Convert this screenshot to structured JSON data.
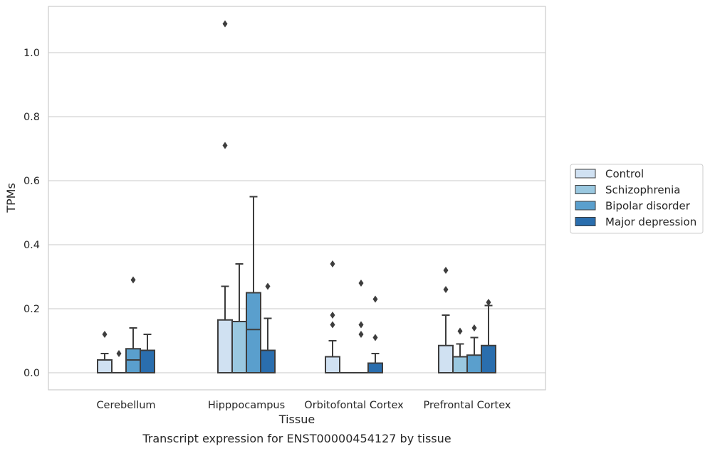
{
  "chart_data": {
    "type": "box",
    "caption": "Transcript expression for ENST00000454127 by tissue",
    "xlabel": "Tissue",
    "ylabel": "TPMs",
    "ylim": [
      -0.05,
      1.15
    ],
    "yticks": [
      0.0,
      0.2,
      0.4,
      0.6,
      0.8,
      1.0
    ],
    "ytick_labels": [
      "0.0",
      "0.2",
      "0.4",
      "0.6",
      "0.8",
      "1.0"
    ],
    "grid": "horizontal",
    "legend_position": "right",
    "categories": [
      "Cerebellum",
      "Hipppocampus",
      "Orbitofontal Cortex",
      "Prefrontal Cortex"
    ],
    "series": [
      {
        "name": "Control",
        "color": "#d0e1f2",
        "boxes": [
          {
            "whisker_low": 0.0,
            "q1": 0.0,
            "median": 0.0,
            "q3": 0.04,
            "whisker_high": 0.06,
            "outliers": [
              0.12
            ]
          },
          {
            "whisker_low": 0.0,
            "q1": 0.0,
            "median": 0.0,
            "q3": 0.165,
            "whisker_high": 0.27,
            "outliers": [
              0.71,
              1.09
            ]
          },
          {
            "whisker_low": 0.0,
            "q1": 0.0,
            "median": 0.0,
            "q3": 0.05,
            "whisker_high": 0.1,
            "outliers": [
              0.15,
              0.18,
              0.34
            ]
          },
          {
            "whisker_low": 0.0,
            "q1": 0.0,
            "median": 0.0,
            "q3": 0.085,
            "whisker_high": 0.18,
            "outliers": [
              0.26,
              0.32
            ]
          }
        ]
      },
      {
        "name": "Schizophrenia",
        "color": "#9ac8e0",
        "boxes": [
          {
            "whisker_low": 0.0,
            "q1": 0.0,
            "median": 0.0,
            "q3": 0.0,
            "whisker_high": 0.0,
            "outliers": [
              0.06
            ]
          },
          {
            "whisker_low": 0.0,
            "q1": 0.0,
            "median": 0.0,
            "q3": 0.16,
            "whisker_high": 0.34,
            "outliers": []
          },
          {
            "whisker_low": 0.0,
            "q1": 0.0,
            "median": 0.0,
            "q3": 0.0,
            "whisker_high": 0.0,
            "outliers": []
          },
          {
            "whisker_low": 0.0,
            "q1": 0.0,
            "median": 0.0,
            "q3": 0.05,
            "whisker_high": 0.09,
            "outliers": [
              0.13
            ]
          }
        ]
      },
      {
        "name": "Bipolar disorder",
        "color": "#5a9fcd",
        "boxes": [
          {
            "whisker_low": 0.0,
            "q1": 0.0,
            "median": 0.04,
            "q3": 0.075,
            "whisker_high": 0.14,
            "outliers": [
              0.29
            ]
          },
          {
            "whisker_low": 0.0,
            "q1": 0.0,
            "median": 0.135,
            "q3": 0.25,
            "whisker_high": 0.55,
            "outliers": []
          },
          {
            "whisker_low": 0.0,
            "q1": 0.0,
            "median": 0.0,
            "q3": 0.0,
            "whisker_high": 0.0,
            "outliers": [
              0.12,
              0.15,
              0.28
            ]
          },
          {
            "whisker_low": 0.0,
            "q1": 0.0,
            "median": 0.0,
            "q3": 0.055,
            "whisker_high": 0.11,
            "outliers": [
              0.14
            ]
          }
        ]
      },
      {
        "name": "Major depression",
        "color": "#2a6eae",
        "boxes": [
          {
            "whisker_low": 0.0,
            "q1": 0.0,
            "median": 0.0,
            "q3": 0.07,
            "whisker_high": 0.12,
            "outliers": []
          },
          {
            "whisker_low": 0.0,
            "q1": 0.0,
            "median": 0.0,
            "q3": 0.07,
            "whisker_high": 0.17,
            "outliers": [
              0.27
            ]
          },
          {
            "whisker_low": 0.0,
            "q1": 0.0,
            "median": 0.0,
            "q3": 0.03,
            "whisker_high": 0.06,
            "outliers": [
              0.11,
              0.23
            ]
          },
          {
            "whisker_low": 0.0,
            "q1": 0.0,
            "median": 0.0,
            "q3": 0.085,
            "whisker_high": 0.21,
            "outliers": [
              0.22
            ]
          }
        ]
      }
    ]
  }
}
